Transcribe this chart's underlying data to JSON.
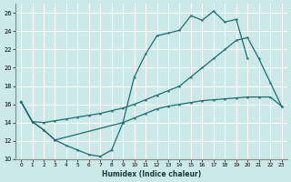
{
  "xlabel": "Humidex (Indice chaleur)",
  "bg_color": "#cce8e8",
  "grid_color": "#ffffff",
  "line_color": "#1a6e6e",
  "xlim": [
    -0.5,
    23.5
  ],
  "ylim": [
    10,
    27
  ],
  "xticks": [
    0,
    1,
    2,
    3,
    4,
    5,
    6,
    7,
    8,
    9,
    10,
    11,
    12,
    13,
    14,
    15,
    16,
    17,
    18,
    19,
    20,
    21,
    22,
    23
  ],
  "yticks": [
    10,
    12,
    14,
    16,
    18,
    20,
    22,
    24,
    26
  ],
  "line_dip_x": [
    0,
    1,
    2,
    3,
    4,
    5,
    6,
    7,
    8,
    9,
    10,
    11,
    12,
    13,
    14,
    15,
    16,
    17,
    18,
    19,
    20
  ],
  "line_dip_y": [
    16.3,
    14.1,
    13.2,
    12.1,
    11.5,
    11.0,
    10.5,
    10.3,
    11.0,
    14.0,
    19.0,
    21.5,
    23.5,
    23.8,
    24.1,
    25.7,
    25.2,
    26.2,
    25.0,
    25.3,
    21.0
  ],
  "line_rise_x": [
    0,
    1,
    2,
    3,
    4,
    5,
    6,
    7,
    8,
    9,
    10,
    11,
    12,
    13,
    14,
    15,
    16,
    17,
    18,
    19,
    20,
    21,
    22,
    23
  ],
  "line_rise_y": [
    16.3,
    14.1,
    14.0,
    14.2,
    14.4,
    14.6,
    14.8,
    15.0,
    15.3,
    15.6,
    16.0,
    16.5,
    17.0,
    17.5,
    18.0,
    19.0,
    20.0,
    21.0,
    22.0,
    23.0,
    23.3,
    21.0,
    18.4,
    15.8
  ],
  "line_flat_x": [
    0,
    1,
    2,
    3,
    9,
    10,
    11,
    12,
    13,
    14,
    15,
    16,
    17,
    18,
    19,
    20,
    21,
    22,
    23
  ],
  "line_flat_y": [
    16.3,
    14.1,
    13.2,
    12.1,
    14.0,
    14.5,
    15.0,
    15.5,
    15.8,
    16.0,
    16.2,
    16.4,
    16.5,
    16.6,
    16.7,
    16.8,
    16.8,
    16.8,
    15.8
  ]
}
